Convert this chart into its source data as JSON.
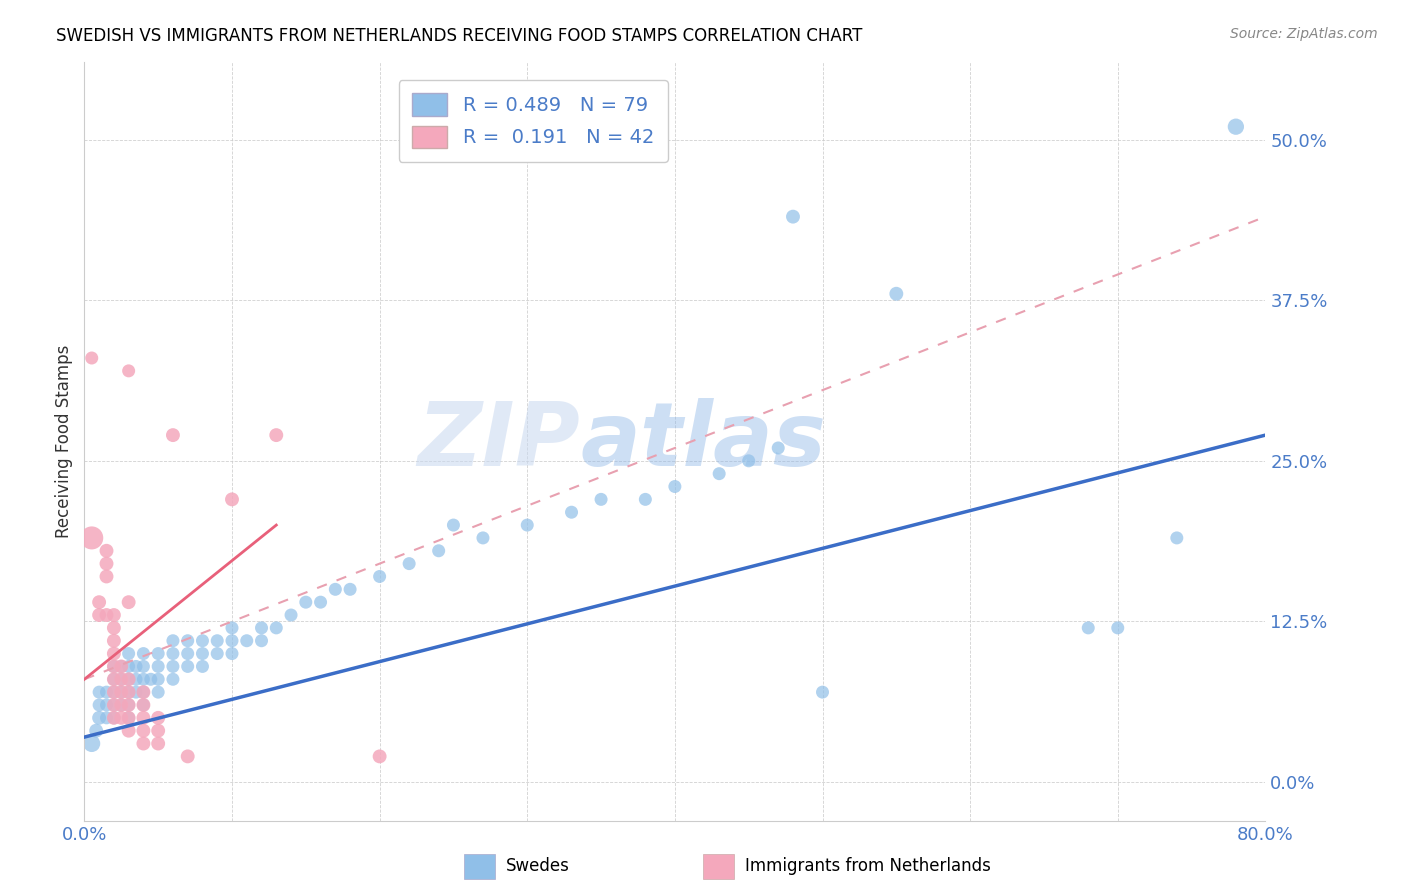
{
  "title": "SWEDISH VS IMMIGRANTS FROM NETHERLANDS RECEIVING FOOD STAMPS CORRELATION CHART",
  "source": "Source: ZipAtlas.com",
  "ylabel": "Receiving Food Stamps",
  "legend_label_blue": "Swedes",
  "legend_label_pink": "Immigrants from Netherlands",
  "R_blue": 0.489,
  "N_blue": 79,
  "R_pink": 0.191,
  "N_pink": 42,
  "xlim": [
    0.0,
    0.8
  ],
  "ylim": [
    -0.03,
    0.56
  ],
  "yticks": [
    0.0,
    0.125,
    0.25,
    0.375,
    0.5
  ],
  "ytick_labels": [
    "0.0%",
    "12.5%",
    "25.0%",
    "37.5%",
    "50.0%"
  ],
  "color_blue": "#90bfe8",
  "color_pink": "#f4a8bc",
  "watermark_zip": "ZIP",
  "watermark_atlas": "atlas",
  "blue_points": [
    [
      0.005,
      0.03,
      60
    ],
    [
      0.008,
      0.04,
      40
    ],
    [
      0.01,
      0.05,
      40
    ],
    [
      0.01,
      0.06,
      35
    ],
    [
      0.01,
      0.07,
      35
    ],
    [
      0.015,
      0.05,
      35
    ],
    [
      0.015,
      0.06,
      35
    ],
    [
      0.015,
      0.07,
      35
    ],
    [
      0.02,
      0.05,
      35
    ],
    [
      0.02,
      0.06,
      35
    ],
    [
      0.02,
      0.07,
      35
    ],
    [
      0.02,
      0.08,
      35
    ],
    [
      0.02,
      0.09,
      35
    ],
    [
      0.025,
      0.06,
      35
    ],
    [
      0.025,
      0.07,
      35
    ],
    [
      0.025,
      0.08,
      35
    ],
    [
      0.025,
      0.09,
      35
    ],
    [
      0.03,
      0.05,
      35
    ],
    [
      0.03,
      0.06,
      35
    ],
    [
      0.03,
      0.07,
      35
    ],
    [
      0.03,
      0.08,
      35
    ],
    [
      0.03,
      0.09,
      35
    ],
    [
      0.03,
      0.1,
      35
    ],
    [
      0.035,
      0.07,
      35
    ],
    [
      0.035,
      0.08,
      35
    ],
    [
      0.035,
      0.09,
      35
    ],
    [
      0.04,
      0.06,
      35
    ],
    [
      0.04,
      0.07,
      35
    ],
    [
      0.04,
      0.08,
      35
    ],
    [
      0.04,
      0.09,
      35
    ],
    [
      0.04,
      0.1,
      35
    ],
    [
      0.045,
      0.08,
      35
    ],
    [
      0.05,
      0.07,
      35
    ],
    [
      0.05,
      0.08,
      35
    ],
    [
      0.05,
      0.09,
      35
    ],
    [
      0.05,
      0.1,
      35
    ],
    [
      0.06,
      0.08,
      35
    ],
    [
      0.06,
      0.09,
      35
    ],
    [
      0.06,
      0.1,
      35
    ],
    [
      0.06,
      0.11,
      35
    ],
    [
      0.07,
      0.09,
      35
    ],
    [
      0.07,
      0.1,
      35
    ],
    [
      0.07,
      0.11,
      35
    ],
    [
      0.08,
      0.09,
      35
    ],
    [
      0.08,
      0.1,
      35
    ],
    [
      0.08,
      0.11,
      35
    ],
    [
      0.09,
      0.1,
      35
    ],
    [
      0.09,
      0.11,
      35
    ],
    [
      0.1,
      0.1,
      35
    ],
    [
      0.1,
      0.11,
      35
    ],
    [
      0.1,
      0.12,
      35
    ],
    [
      0.11,
      0.11,
      35
    ],
    [
      0.12,
      0.11,
      35
    ],
    [
      0.12,
      0.12,
      35
    ],
    [
      0.13,
      0.12,
      35
    ],
    [
      0.14,
      0.13,
      35
    ],
    [
      0.15,
      0.14,
      35
    ],
    [
      0.16,
      0.14,
      35
    ],
    [
      0.17,
      0.15,
      35
    ],
    [
      0.18,
      0.15,
      35
    ],
    [
      0.2,
      0.16,
      35
    ],
    [
      0.22,
      0.17,
      35
    ],
    [
      0.24,
      0.18,
      35
    ],
    [
      0.25,
      0.2,
      35
    ],
    [
      0.27,
      0.19,
      35
    ],
    [
      0.3,
      0.2,
      35
    ],
    [
      0.33,
      0.21,
      35
    ],
    [
      0.35,
      0.22,
      35
    ],
    [
      0.38,
      0.22,
      35
    ],
    [
      0.4,
      0.23,
      35
    ],
    [
      0.43,
      0.24,
      35
    ],
    [
      0.45,
      0.25,
      35
    ],
    [
      0.47,
      0.26,
      35
    ],
    [
      0.5,
      0.07,
      35
    ],
    [
      0.48,
      0.44,
      40
    ],
    [
      0.55,
      0.38,
      40
    ],
    [
      0.68,
      0.12,
      35
    ],
    [
      0.7,
      0.12,
      35
    ],
    [
      0.74,
      0.19,
      35
    ],
    [
      0.78,
      0.51,
      55
    ]
  ],
  "pink_points": [
    [
      0.005,
      0.19,
      110
    ],
    [
      0.01,
      0.13,
      40
    ],
    [
      0.01,
      0.14,
      40
    ],
    [
      0.015,
      0.13,
      40
    ],
    [
      0.015,
      0.16,
      40
    ],
    [
      0.015,
      0.17,
      40
    ],
    [
      0.015,
      0.18,
      40
    ],
    [
      0.02,
      0.05,
      40
    ],
    [
      0.02,
      0.06,
      40
    ],
    [
      0.02,
      0.07,
      40
    ],
    [
      0.02,
      0.08,
      40
    ],
    [
      0.02,
      0.09,
      40
    ],
    [
      0.02,
      0.1,
      40
    ],
    [
      0.02,
      0.11,
      40
    ],
    [
      0.02,
      0.12,
      40
    ],
    [
      0.02,
      0.13,
      40
    ],
    [
      0.025,
      0.05,
      40
    ],
    [
      0.025,
      0.06,
      40
    ],
    [
      0.025,
      0.07,
      40
    ],
    [
      0.025,
      0.08,
      40
    ],
    [
      0.025,
      0.09,
      40
    ],
    [
      0.03,
      0.04,
      40
    ],
    [
      0.03,
      0.05,
      40
    ],
    [
      0.03,
      0.06,
      40
    ],
    [
      0.03,
      0.07,
      40
    ],
    [
      0.03,
      0.08,
      40
    ],
    [
      0.03,
      0.14,
      40
    ],
    [
      0.03,
      0.32,
      35
    ],
    [
      0.04,
      0.03,
      40
    ],
    [
      0.04,
      0.04,
      40
    ],
    [
      0.04,
      0.05,
      40
    ],
    [
      0.04,
      0.06,
      40
    ],
    [
      0.04,
      0.07,
      40
    ],
    [
      0.05,
      0.03,
      40
    ],
    [
      0.05,
      0.04,
      40
    ],
    [
      0.05,
      0.05,
      40
    ],
    [
      0.06,
      0.27,
      40
    ],
    [
      0.07,
      0.02,
      40
    ],
    [
      0.1,
      0.22,
      40
    ],
    [
      0.13,
      0.27,
      40
    ],
    [
      0.2,
      0.02,
      40
    ],
    [
      0.005,
      0.33,
      35
    ]
  ],
  "blue_line": [
    0.0,
    0.8,
    0.035,
    0.27
  ],
  "pink_line_solid": [
    0.0,
    0.13,
    0.08,
    0.2
  ],
  "pink_line_dashed": [
    0.0,
    0.8,
    0.08,
    0.44
  ]
}
